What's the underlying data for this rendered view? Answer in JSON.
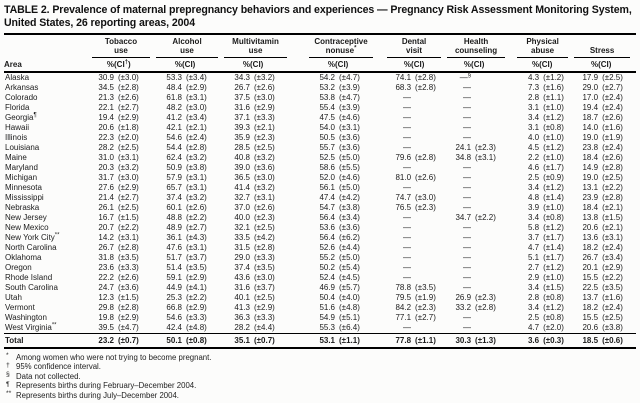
{
  "title": "TABLE 2. Prevalence of maternal prepregnancy behaviors and experiences — Pregnancy Risk Assessment Monitoring System, United States, 26 reporting areas, 2004",
  "table": {
    "area_header": "Area",
    "pct_label": "%",
    "ci_label": "(CI)",
    "groups": [
      {
        "id": "tobacco-use",
        "lines": [
          "Tobacco",
          "use"
        ],
        "sup": "",
        "ci_sup": "†"
      },
      {
        "id": "alcohol-use",
        "lines": [
          "Alcohol",
          "use"
        ],
        "sup": "",
        "ci_sup": ""
      },
      {
        "id": "multivitamin-use",
        "lines": [
          "Multivitamin",
          "use"
        ],
        "sup": "",
        "ci_sup": ""
      },
      {
        "id": "contraceptive-nonuse",
        "lines": [
          "Contraceptive",
          "nonuse"
        ],
        "sup": "*",
        "ci_sup": ""
      },
      {
        "id": "dental-visit",
        "lines": [
          "Dental",
          "visit"
        ],
        "sup": "",
        "ci_sup": ""
      },
      {
        "id": "health-counseling",
        "lines": [
          "Health",
          "counseling"
        ],
        "sup": "",
        "ci_sup": ""
      },
      {
        "id": "physical-abuse",
        "lines": [
          "Physical",
          "abuse"
        ],
        "sup": "",
        "ci_sup": ""
      },
      {
        "id": "stress",
        "lines": [
          "Stress"
        ],
        "sup": "",
        "ci_sup": ""
      }
    ],
    "rows": [
      {
        "area": "Alaska",
        "area_sup": "",
        "cells": [
          [
            "30.9",
            "(±3.0)"
          ],
          [
            "53.3",
            "(±3.4)"
          ],
          [
            "34.3",
            "(±3.2)"
          ],
          [
            "54.2",
            "(±4.7)"
          ],
          [
            "74.1",
            "(±2.8)"
          ],
          [
            "—",
            "",
            "§"
          ],
          [
            "4.3",
            "(±1.2)"
          ],
          [
            "17.9",
            "(±2.5)"
          ]
        ]
      },
      {
        "area": "Arkansas",
        "area_sup": "",
        "cells": [
          [
            "34.5",
            "(±2.8)"
          ],
          [
            "48.4",
            "(±2.9)"
          ],
          [
            "26.7",
            "(±2.6)"
          ],
          [
            "53.2",
            "(±3.9)"
          ],
          [
            "68.3",
            "(±2.8)"
          ],
          [
            "—"
          ],
          [
            "7.3",
            "(±1.6)"
          ],
          [
            "29.0",
            "(±2.7)"
          ]
        ]
      },
      {
        "area": "Colorado",
        "area_sup": "",
        "cells": [
          [
            "21.3",
            "(±2.6)"
          ],
          [
            "61.8",
            "(±3.1)"
          ],
          [
            "37.5",
            "(±3.0)"
          ],
          [
            "53.8",
            "(±4.7)"
          ],
          [
            "—"
          ],
          [
            "—"
          ],
          [
            "2.8",
            "(±1.1)"
          ],
          [
            "17.0",
            "(±2.4)"
          ]
        ]
      },
      {
        "area": "Florida",
        "area_sup": "",
        "cells": [
          [
            "22.1",
            "(±2.7)"
          ],
          [
            "48.2",
            "(±3.0)"
          ],
          [
            "31.6",
            "(±2.9)"
          ],
          [
            "55.4",
            "(±3.9)"
          ],
          [
            "—"
          ],
          [
            "—"
          ],
          [
            "3.1",
            "(±1.0)"
          ],
          [
            "19.4",
            "(±2.4)"
          ]
        ]
      },
      {
        "area": "Georgia",
        "area_sup": "¶",
        "cells": [
          [
            "19.4",
            "(±2.9)"
          ],
          [
            "41.2",
            "(±3.4)"
          ],
          [
            "37.1",
            "(±3.3)"
          ],
          [
            "47.5",
            "(±4.6)"
          ],
          [
            "—"
          ],
          [
            "—"
          ],
          [
            "3.4",
            "(±1.2)"
          ],
          [
            "18.7",
            "(±2.6)"
          ]
        ]
      },
      {
        "area": "Hawaii",
        "area_sup": "",
        "cells": [
          [
            "20.6",
            "(±1.8)"
          ],
          [
            "42.1",
            "(±2.1)"
          ],
          [
            "39.3",
            "(±2.1)"
          ],
          [
            "54.0",
            "(±3.1)"
          ],
          [
            "—"
          ],
          [
            "—"
          ],
          [
            "3.1",
            "(±0.8)"
          ],
          [
            "14.0",
            "(±1.6)"
          ]
        ]
      },
      {
        "area": "Illinois",
        "area_sup": "",
        "cells": [
          [
            "22.3",
            "(±2.0)"
          ],
          [
            "54.6",
            "(±2.4)"
          ],
          [
            "35.9",
            "(±2.3)"
          ],
          [
            "50.5",
            "(±3.6)"
          ],
          [
            "—"
          ],
          [
            "—"
          ],
          [
            "4.0",
            "(±1.0)"
          ],
          [
            "19.0",
            "(±1.9)"
          ]
        ]
      },
      {
        "area": "Louisiana",
        "area_sup": "",
        "cells": [
          [
            "28.2",
            "(±2.5)"
          ],
          [
            "54.4",
            "(±2.8)"
          ],
          [
            "28.5",
            "(±2.5)"
          ],
          [
            "55.7",
            "(±3.6)"
          ],
          [
            "—"
          ],
          [
            "24.1",
            "(±2.3)"
          ],
          [
            "4.5",
            "(±1.2)"
          ],
          [
            "23.8",
            "(±2.4)"
          ]
        ]
      },
      {
        "area": "Maine",
        "area_sup": "",
        "cells": [
          [
            "31.0",
            "(±3.1)"
          ],
          [
            "62.4",
            "(±3.2)"
          ],
          [
            "40.8",
            "(±3.2)"
          ],
          [
            "52.5",
            "(±5.0)"
          ],
          [
            "79.6",
            "(±2.8)"
          ],
          [
            "34.8",
            "(±3.1)"
          ],
          [
            "2.2",
            "(±1.0)"
          ],
          [
            "18.4",
            "(±2.6)"
          ]
        ]
      },
      {
        "area": "Maryland",
        "area_sup": "",
        "cells": [
          [
            "20.3",
            "(±3.2)"
          ],
          [
            "50.9",
            "(±3.8)"
          ],
          [
            "39.0",
            "(±3.6)"
          ],
          [
            "58.6",
            "(±5.5)"
          ],
          [
            "—"
          ],
          [
            "—"
          ],
          [
            "4.6",
            "(±1.7)"
          ],
          [
            "14.9",
            "(±2.8)"
          ]
        ]
      },
      {
        "area": "Michigan",
        "area_sup": "",
        "cells": [
          [
            "31.7",
            "(±3.0)"
          ],
          [
            "57.9",
            "(±3.1)"
          ],
          [
            "36.5",
            "(±3.0)"
          ],
          [
            "52.0",
            "(±4.6)"
          ],
          [
            "81.0",
            "(±2.6)"
          ],
          [
            "—"
          ],
          [
            "2.5",
            "(±0.9)"
          ],
          [
            "19.0",
            "(±2.5)"
          ]
        ]
      },
      {
        "area": "Minnesota",
        "area_sup": "",
        "cells": [
          [
            "27.6",
            "(±2.9)"
          ],
          [
            "65.7",
            "(±3.1)"
          ],
          [
            "41.4",
            "(±3.2)"
          ],
          [
            "56.1",
            "(±5.0)"
          ],
          [
            "—"
          ],
          [
            "—"
          ],
          [
            "3.4",
            "(±1.2)"
          ],
          [
            "13.1",
            "(±2.2)"
          ]
        ]
      },
      {
        "area": "Mississippi",
        "area_sup": "",
        "cells": [
          [
            "21.4",
            "(±2.7)"
          ],
          [
            "37.4",
            "(±3.2)"
          ],
          [
            "32.7",
            "(±3.1)"
          ],
          [
            "47.4",
            "(±4.2)"
          ],
          [
            "74.7",
            "(±3.0)"
          ],
          [
            "—"
          ],
          [
            "4.8",
            "(±1.4)"
          ],
          [
            "23.9",
            "(±2.8)"
          ]
        ]
      },
      {
        "area": "Nebraska",
        "area_sup": "",
        "cells": [
          [
            "26.1",
            "(±2.5)"
          ],
          [
            "60.1",
            "(±2.6)"
          ],
          [
            "37.0",
            "(±2.6)"
          ],
          [
            "54.7",
            "(±3.8)"
          ],
          [
            "76.5",
            "(±2.3)"
          ],
          [
            "—"
          ],
          [
            "3.9",
            "(±1.0)"
          ],
          [
            "18.4",
            "(±2.1)"
          ]
        ]
      },
      {
        "area": "New Jersey",
        "area_sup": "",
        "cells": [
          [
            "16.7",
            "(±1.5)"
          ],
          [
            "48.8",
            "(±2.2)"
          ],
          [
            "40.0",
            "(±2.3)"
          ],
          [
            "56.4",
            "(±3.4)"
          ],
          [
            "—"
          ],
          [
            "34.7",
            "(±2.2)"
          ],
          [
            "3.4",
            "(±0.8)"
          ],
          [
            "13.8",
            "(±1.5)"
          ]
        ]
      },
      {
        "area": "New Mexico",
        "area_sup": "",
        "cells": [
          [
            "20.7",
            "(±2.2)"
          ],
          [
            "48.9",
            "(±2.7)"
          ],
          [
            "32.1",
            "(±2.5)"
          ],
          [
            "53.6",
            "(±3.6)"
          ],
          [
            "—"
          ],
          [
            "—"
          ],
          [
            "5.8",
            "(±1.2)"
          ],
          [
            "20.6",
            "(±2.1)"
          ]
        ]
      },
      {
        "area": "New York City",
        "area_sup": "**",
        "cells": [
          [
            "14.2",
            "(±3.1)"
          ],
          [
            "36.1",
            "(±4.3)"
          ],
          [
            "33.5",
            "(±4.2)"
          ],
          [
            "56.4",
            "(±6.2)"
          ],
          [
            "—"
          ],
          [
            "—"
          ],
          [
            "3.7",
            "(±1.7)"
          ],
          [
            "13.6",
            "(±3.1)"
          ]
        ]
      },
      {
        "area": "North Carolina",
        "area_sup": "",
        "cells": [
          [
            "26.7",
            "(±2.8)"
          ],
          [
            "47.6",
            "(±3.1)"
          ],
          [
            "31.5",
            "(±2.8)"
          ],
          [
            "52.6",
            "(±4.4)"
          ],
          [
            "—"
          ],
          [
            "—"
          ],
          [
            "4.7",
            "(±1.4)"
          ],
          [
            "18.2",
            "(±2.4)"
          ]
        ]
      },
      {
        "area": "Oklahoma",
        "area_sup": "",
        "cells": [
          [
            "31.8",
            "(±3.5)"
          ],
          [
            "51.7",
            "(±3.7)"
          ],
          [
            "29.0",
            "(±3.3)"
          ],
          [
            "55.2",
            "(±5.0)"
          ],
          [
            "—"
          ],
          [
            "—"
          ],
          [
            "5.1",
            "(±1.7)"
          ],
          [
            "26.7",
            "(±3.4)"
          ]
        ]
      },
      {
        "area": "Oregon",
        "area_sup": "",
        "cells": [
          [
            "23.6",
            "(±3.3)"
          ],
          [
            "51.4",
            "(±3.5)"
          ],
          [
            "37.4",
            "(±3.5)"
          ],
          [
            "50.2",
            "(±5.4)"
          ],
          [
            "—"
          ],
          [
            "—"
          ],
          [
            "2.7",
            "(±1.2)"
          ],
          [
            "20.1",
            "(±2.9)"
          ]
        ]
      },
      {
        "area": "Rhode Island",
        "area_sup": "",
        "cells": [
          [
            "22.2",
            "(±2.6)"
          ],
          [
            "59.1",
            "(±2.9)"
          ],
          [
            "43.6",
            "(±3.0)"
          ],
          [
            "52.4",
            "(±4.5)"
          ],
          [
            "—"
          ],
          [
            "—"
          ],
          [
            "2.9",
            "(±1.0)"
          ],
          [
            "15.5",
            "(±2.2)"
          ]
        ]
      },
      {
        "area": "South Carolina",
        "area_sup": "",
        "cells": [
          [
            "24.7",
            "(±3.6)"
          ],
          [
            "44.9",
            "(±4.1)"
          ],
          [
            "31.6",
            "(±3.7)"
          ],
          [
            "46.9",
            "(±5.7)"
          ],
          [
            "78.8",
            "(±3.5)"
          ],
          [
            "—"
          ],
          [
            "3.4",
            "(±1.5)"
          ],
          [
            "22.5",
            "(±3.5)"
          ]
        ]
      },
      {
        "area": "Utah",
        "area_sup": "",
        "cells": [
          [
            "12.3",
            "(±1.5)"
          ],
          [
            "25.3",
            "(±2.2)"
          ],
          [
            "40.1",
            "(±2.5)"
          ],
          [
            "50.4",
            "(±4.0)"
          ],
          [
            "79.5",
            "(±1.9)"
          ],
          [
            "26.9",
            "(±2.3)"
          ],
          [
            "2.8",
            "(±0.8)"
          ],
          [
            "13.7",
            "(±1.6)"
          ]
        ]
      },
      {
        "area": "Vermont",
        "area_sup": "",
        "cells": [
          [
            "29.8",
            "(±2.8)"
          ],
          [
            "66.8",
            "(±2.9)"
          ],
          [
            "41.3",
            "(±2.9)"
          ],
          [
            "51.6",
            "(±4.8)"
          ],
          [
            "84.2",
            "(±2.3)"
          ],
          [
            "33.2",
            "(±2.8)"
          ],
          [
            "3.4",
            "(±1.2)"
          ],
          [
            "18.2",
            "(±2.4)"
          ]
        ]
      },
      {
        "area": "Washington",
        "area_sup": "",
        "cells": [
          [
            "19.8",
            "(±2.9)"
          ],
          [
            "54.6",
            "(±3.3)"
          ],
          [
            "36.3",
            "(±3.3)"
          ],
          [
            "54.9",
            "(±5.1)"
          ],
          [
            "77.1",
            "(±2.7)"
          ],
          [
            "—"
          ],
          [
            "2.5",
            "(±0.8)"
          ],
          [
            "15.5",
            "(±2.5)"
          ]
        ]
      },
      {
        "area": "West Virginia",
        "area_sup": "**",
        "cells": [
          [
            "39.5",
            "(±4.7)"
          ],
          [
            "42.4",
            "(±4.8)"
          ],
          [
            "28.2",
            "(±4.4)"
          ],
          [
            "55.3",
            "(±6.4)"
          ],
          [
            "—"
          ],
          [
            "—"
          ],
          [
            "4.7",
            "(±2.0)"
          ],
          [
            "20.6",
            "(±3.8)"
          ]
        ]
      }
    ],
    "total_row": {
      "area": "Total",
      "area_sup": "",
      "cells": [
        [
          "23.2",
          "(±0.7)"
        ],
        [
          "50.1",
          "(±0.8)"
        ],
        [
          "35.1",
          "(±0.7)"
        ],
        [
          "53.1",
          "(±1.1)"
        ],
        [
          "77.8",
          "(±1.1)"
        ],
        [
          "30.3",
          "(±1.3)"
        ],
        [
          "3.6",
          "(±0.3)"
        ],
        [
          "18.5",
          "(±0.6)"
        ]
      ]
    }
  },
  "footnotes": [
    {
      "sym": "*",
      "text": "Among women who were not trying to become pregnant."
    },
    {
      "sym": "†",
      "text": "95% confidence interval."
    },
    {
      "sym": "§",
      "text": "Data not collected."
    },
    {
      "sym": "¶",
      "text": "Represents births during February–December 2004."
    },
    {
      "sym": "**",
      "text": "Represents births during July–December 2004."
    }
  ]
}
